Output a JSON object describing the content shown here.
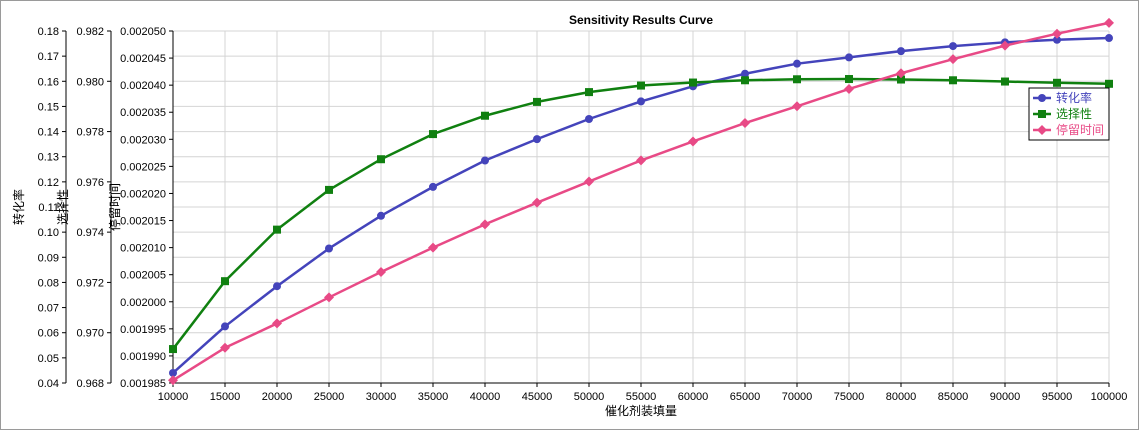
{
  "chart_data": {
    "type": "line",
    "title": "Sensitivity Results Curve",
    "xlabel": "催化剂装填量",
    "x": [
      10000,
      15000,
      20000,
      25000,
      30000,
      35000,
      40000,
      45000,
      50000,
      55000,
      60000,
      65000,
      70000,
      75000,
      80000,
      85000,
      90000,
      95000,
      100000
    ],
    "xlim": [
      10000,
      100000
    ],
    "grid": true,
    "legend_position": "right",
    "y_axes": [
      {
        "id": "y1",
        "label": "转化率",
        "ylim": [
          0.04,
          0.18
        ],
        "ticks": [
          "0.04",
          "0.05",
          "0.06",
          "0.07",
          "0.08",
          "0.09",
          "0.10",
          "0.11",
          "0.12",
          "0.13",
          "0.14",
          "0.15",
          "0.16",
          "0.17",
          "0.18"
        ]
      },
      {
        "id": "y2",
        "label": "选择性",
        "ylim": [
          0.968,
          0.982
        ],
        "ticks": [
          "0.968",
          "0.970",
          "0.972",
          "0.974",
          "0.976",
          "0.978",
          "0.980",
          "0.982"
        ]
      },
      {
        "id": "y3",
        "label": "停留时间",
        "ylim": [
          0.001985,
          0.00205
        ],
        "ticks": [
          "0.001985",
          "0.001990",
          "0.001995",
          "0.002000",
          "0.002005",
          "0.002010",
          "0.002015",
          "0.002020",
          "0.002025",
          "0.002030",
          "0.002035",
          "0.002040",
          "0.002045",
          "0.002050"
        ]
      }
    ],
    "series": [
      {
        "name": "转化率",
        "axis": "y1",
        "color": "#4444bb",
        "marker": "circle",
        "values": [
          0.044,
          0.0625,
          0.0785,
          0.0935,
          0.1065,
          0.118,
          0.1285,
          0.137,
          0.145,
          0.152,
          0.158,
          0.163,
          0.167,
          0.1695,
          0.172,
          0.174,
          0.1755,
          0.1765,
          0.1772
        ]
      },
      {
        "name": "选择性",
        "axis": "y2",
        "color": "#108010",
        "marker": "square",
        "values": [
          0.96935,
          0.97205,
          0.9741,
          0.97568,
          0.9769,
          0.9779,
          0.97863,
          0.97918,
          0.97957,
          0.97983,
          0.97995,
          0.98004,
          0.98008,
          0.98009,
          0.98007,
          0.98004,
          0.97999,
          0.97994,
          0.9799
        ]
      },
      {
        "name": "停留时间",
        "axis": "y3",
        "color": "#e84a86",
        "marker": "diamond",
        "values": [
          0.0019855,
          0.0019915,
          0.001996,
          0.0020008,
          0.0020055,
          0.00201,
          0.0020143,
          0.0020183,
          0.0020222,
          0.0020261,
          0.0020296,
          0.002033,
          0.0020361,
          0.0020393,
          0.0020422,
          0.0020448,
          0.0020473,
          0.0020495,
          0.0020515
        ]
      }
    ]
  }
}
